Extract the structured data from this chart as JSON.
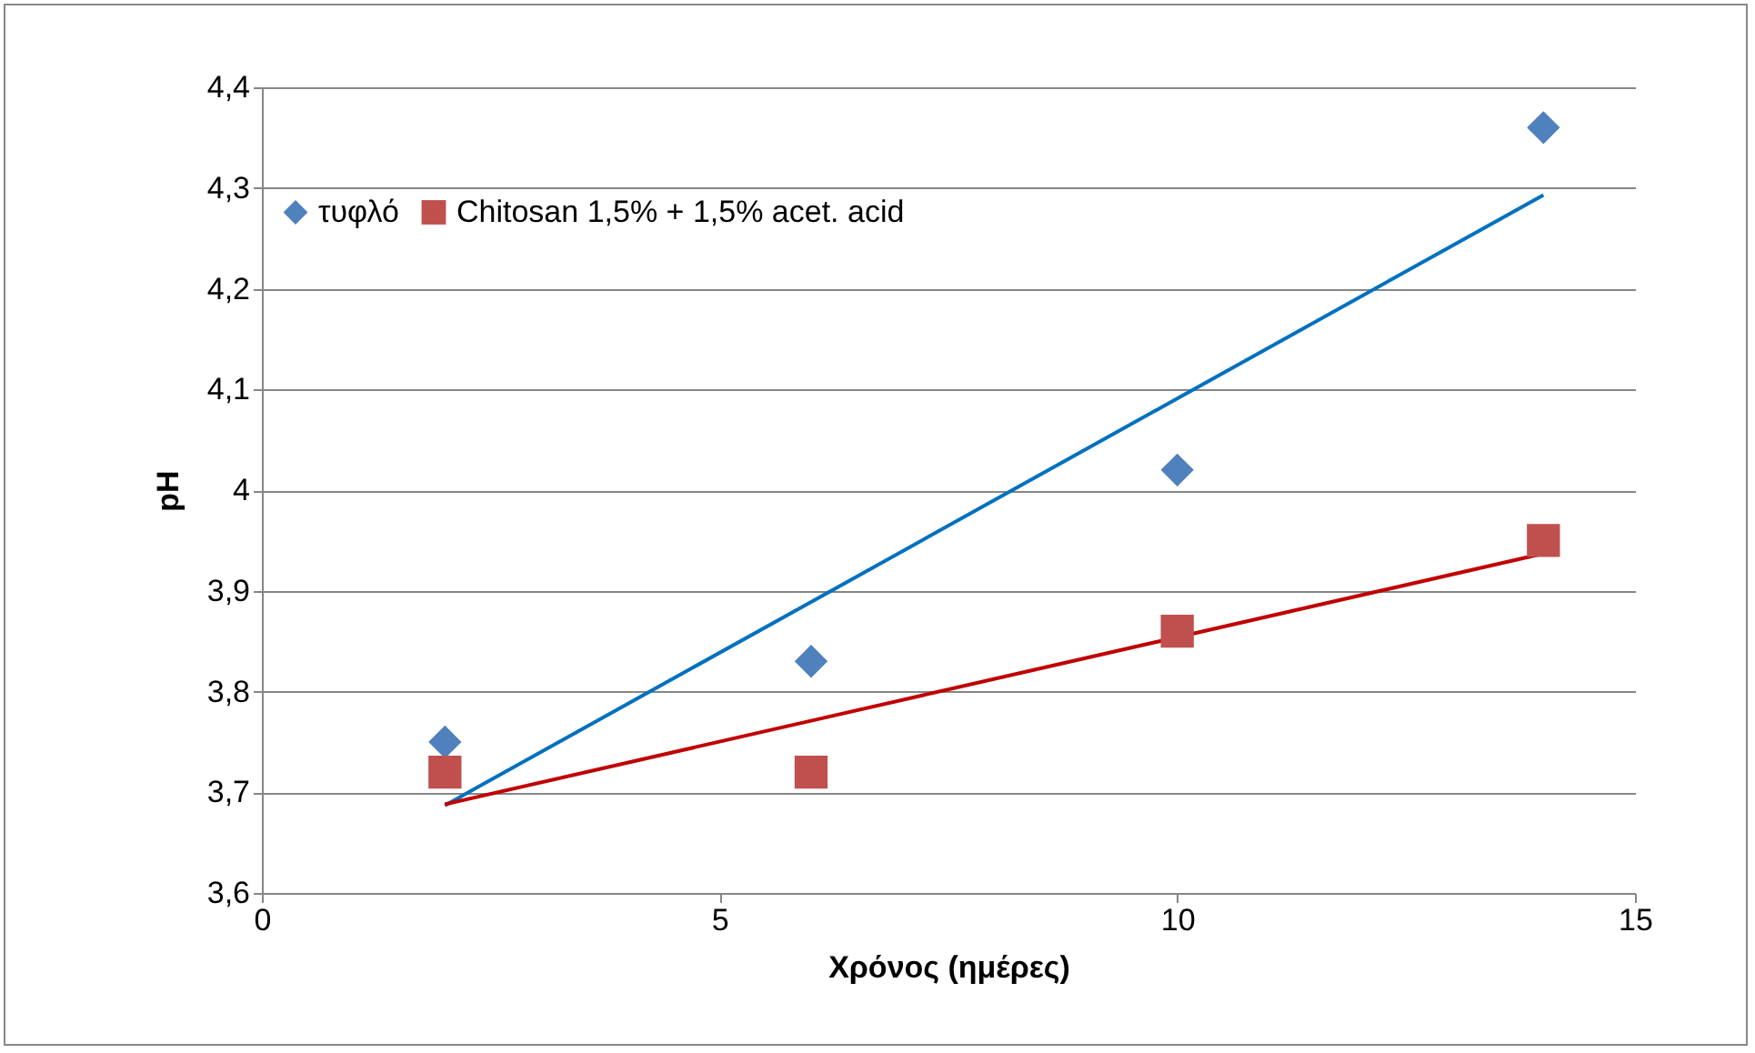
{
  "chart_data": {
    "type": "scatter",
    "xlabel": "Χρόνος (ημέρες)",
    "ylabel": "pH",
    "xlim": [
      0,
      15
    ],
    "xticks": [
      0,
      5,
      10,
      15
    ],
    "ylim": [
      3.6,
      4.4
    ],
    "yticks": [
      {
        "value": 3.6,
        "label": "3,6"
      },
      {
        "value": 3.7,
        "label": "3,7"
      },
      {
        "value": 3.8,
        "label": "3,8"
      },
      {
        "value": 3.9,
        "label": "3,9"
      },
      {
        "value": 4,
        "label": "4"
      },
      {
        "value": 4.1,
        "label": "4,1"
      },
      {
        "value": 4.2,
        "label": "4,2"
      },
      {
        "value": 4.3,
        "label": "4,3"
      },
      {
        "value": 4.4,
        "label": "4,4"
      }
    ],
    "grid": "y",
    "legend": "top left",
    "x": [
      2,
      6,
      10,
      14
    ],
    "series": [
      {
        "name": "τυφλό",
        "color": "#4f81bd",
        "marker": "diamond",
        "values": [
          3.75,
          3.83,
          4.02,
          4.36
        ]
      },
      {
        "name": "Chitosan 1,5% + 1,5% acet. acid",
        "color": "#c0504d",
        "marker": "square",
        "values": [
          3.72,
          3.72,
          3.86,
          3.95
        ]
      },
      {
        "type": "line",
        "color": "#0070c0",
        "marker": "none",
        "values": [
          3.687,
          3.889,
          4.091,
          4.293
        ]
      },
      {
        "type": "line",
        "color": "#c00000",
        "marker": "none",
        "values": [
          3.688,
          3.771,
          3.854,
          3.937
        ]
      }
    ]
  }
}
